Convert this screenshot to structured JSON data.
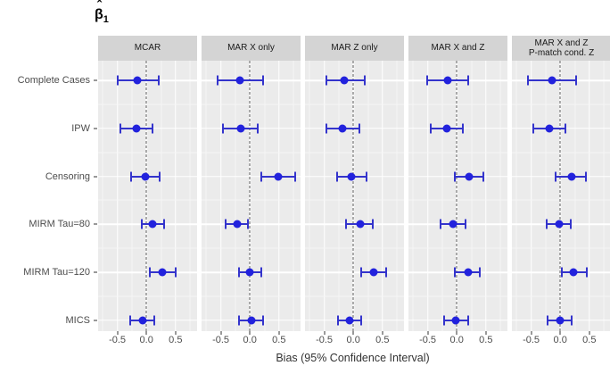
{
  "title": {
    "symbol": "β",
    "hat": "ˆ",
    "subscript": "1"
  },
  "chart_data": {
    "type": "scatter",
    "subtype": "dot-with-95ci-errorbars-faceted",
    "xlabel": "Bias (95% Confidence Interval)",
    "ylabel": "",
    "x_ticks": [
      -0.5,
      0.0,
      0.5
    ],
    "x_tick_labels": [
      "-0.5",
      "0.0",
      "0.5"
    ],
    "x_minor_gridlines": [
      -0.75,
      -0.25,
      0.25,
      0.75
    ],
    "xlim": [
      -0.83,
      0.87
    ],
    "reference_line_x": 0,
    "grid": true,
    "legend_position": "none",
    "categories": [
      "Complete Cases",
      "IPW",
      "Censoring",
      "MIRM Tau=80",
      "MIRM Tau=120",
      "MICS"
    ],
    "facets": [
      {
        "label_lines": [
          "MCAR"
        ]
      },
      {
        "label_lines": [
          "MAR X only"
        ]
      },
      {
        "label_lines": [
          "MAR Z only"
        ]
      },
      {
        "label_lines": [
          "MAR X and Z"
        ]
      },
      {
        "label_lines": [
          "MAR X and Z",
          "P-match cond. Z"
        ]
      }
    ],
    "series": [
      {
        "facet": "MCAR",
        "values": [
          {
            "method": "Complete Cases",
            "est": -0.15,
            "lo": -0.49,
            "hi": 0.21
          },
          {
            "method": "IPW",
            "est": -0.17,
            "lo": -0.45,
            "hi": 0.1
          },
          {
            "method": "Censoring",
            "est": -0.02,
            "lo": -0.26,
            "hi": 0.23
          },
          {
            "method": "MIRM Tau=80",
            "est": 0.11,
            "lo": -0.08,
            "hi": 0.3
          },
          {
            "method": "MIRM Tau=120",
            "est": 0.28,
            "lo": 0.06,
            "hi": 0.51
          },
          {
            "method": "MICS",
            "est": -0.07,
            "lo": -0.28,
            "hi": 0.14
          }
        ]
      },
      {
        "facet": "MAR X only",
        "values": [
          {
            "method": "Complete Cases",
            "est": -0.17,
            "lo": -0.55,
            "hi": 0.23
          },
          {
            "method": "IPW",
            "est": -0.15,
            "lo": -0.47,
            "hi": 0.14
          },
          {
            "method": "Censoring",
            "est": 0.49,
            "lo": 0.2,
            "hi": 0.78
          },
          {
            "method": "MIRM Tau=80",
            "est": -0.22,
            "lo": -0.41,
            "hi": -0.04
          },
          {
            "method": "MIRM Tau=120",
            "est": 0.0,
            "lo": -0.19,
            "hi": 0.19
          },
          {
            "method": "MICS",
            "est": 0.02,
            "lo": -0.18,
            "hi": 0.23
          }
        ]
      },
      {
        "facet": "MAR Z only",
        "values": [
          {
            "method": "Complete Cases",
            "est": -0.15,
            "lo": -0.46,
            "hi": 0.2
          },
          {
            "method": "IPW",
            "est": -0.18,
            "lo": -0.47,
            "hi": 0.11
          },
          {
            "method": "Censoring",
            "est": -0.03,
            "lo": -0.28,
            "hi": 0.22
          },
          {
            "method": "MIRM Tau=80",
            "est": 0.12,
            "lo": -0.12,
            "hi": 0.33
          },
          {
            "method": "MIRM Tau=120",
            "est": 0.35,
            "lo": 0.13,
            "hi": 0.57
          },
          {
            "method": "MICS",
            "est": -0.06,
            "lo": -0.27,
            "hi": 0.14
          }
        ]
      },
      {
        "facet": "MAR X and Z",
        "values": [
          {
            "method": "Complete Cases",
            "est": -0.15,
            "lo": -0.51,
            "hi": 0.2
          },
          {
            "method": "IPW",
            "est": -0.17,
            "lo": -0.45,
            "hi": 0.1
          },
          {
            "method": "Censoring",
            "est": 0.21,
            "lo": -0.04,
            "hi": 0.46
          },
          {
            "method": "MIRM Tau=80",
            "est": -0.07,
            "lo": -0.28,
            "hi": 0.15
          },
          {
            "method": "MIRM Tau=120",
            "est": 0.2,
            "lo": -0.03,
            "hi": 0.39
          },
          {
            "method": "MICS",
            "est": -0.02,
            "lo": -0.22,
            "hi": 0.19
          }
        ]
      },
      {
        "facet": "MAR X and Z P-match cond. Z",
        "values": [
          {
            "method": "Complete Cases",
            "est": -0.14,
            "lo": -0.55,
            "hi": 0.27
          },
          {
            "method": "IPW",
            "est": -0.19,
            "lo": -0.46,
            "hi": 0.09
          },
          {
            "method": "Censoring",
            "est": 0.19,
            "lo": -0.08,
            "hi": 0.44
          },
          {
            "method": "MIRM Tau=80",
            "est": -0.02,
            "lo": -0.23,
            "hi": 0.18
          },
          {
            "method": "MIRM Tau=120",
            "est": 0.23,
            "lo": 0.02,
            "hi": 0.45
          },
          {
            "method": "MICS",
            "est": -0.01,
            "lo": -0.22,
            "hi": 0.19
          }
        ]
      }
    ],
    "colors": {
      "point": "#2222DD",
      "errorbar": "#3434CC",
      "panel_background": "#EBEBEB",
      "strip_background": "#D4D4D4",
      "major_gridline": "#FFFFFF",
      "minor_gridline": "#F6F6F6",
      "zero_line": "#595959",
      "axis_text": "#4D4D4D"
    }
  }
}
